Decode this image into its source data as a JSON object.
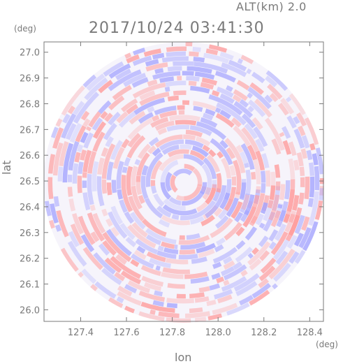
{
  "header": {
    "altitude": "ALT(km) 2.0",
    "datetime": "2017/10/24 03:41:30"
  },
  "axes": {
    "x_unit": "(deg)",
    "y_unit": "(deg)",
    "x_label": "lon",
    "y_label": "lat"
  },
  "colors": {
    "positive": "#ff9999",
    "negative": "#a3a3ff",
    "axis": "#7a7a7a"
  },
  "chart_data": {
    "type": "heatmap",
    "title": "2017/10/24 03:41:30",
    "subtitle": "ALT(km) 2.0",
    "xlabel": "lon",
    "ylabel": "lat",
    "xlim": [
      127.24,
      128.46
    ],
    "ylim": [
      25.955,
      27.04
    ],
    "x_ticks": [
      "127.4",
      "127.6",
      "127.8",
      "128.0",
      "128.2",
      "128.4"
    ],
    "y_ticks": [
      "26.0",
      "26.1",
      "26.2",
      "26.3",
      "26.4",
      "26.5",
      "26.6",
      "26.7",
      "26.8",
      "26.9",
      "27.0"
    ],
    "x_tick_values": [
      127.4,
      127.6,
      127.8,
      128.0,
      128.2,
      128.4
    ],
    "y_tick_values": [
      26.0,
      26.1,
      26.2,
      26.3,
      26.4,
      26.5,
      26.6,
      26.7,
      26.8,
      26.9,
      27.0
    ],
    "center": {
      "lon": 127.85,
      "lat": 26.495
    },
    "range_deg_lat": 0.545,
    "field": "radial velocity pattern (red positive / blue negative)",
    "grid": false
  }
}
